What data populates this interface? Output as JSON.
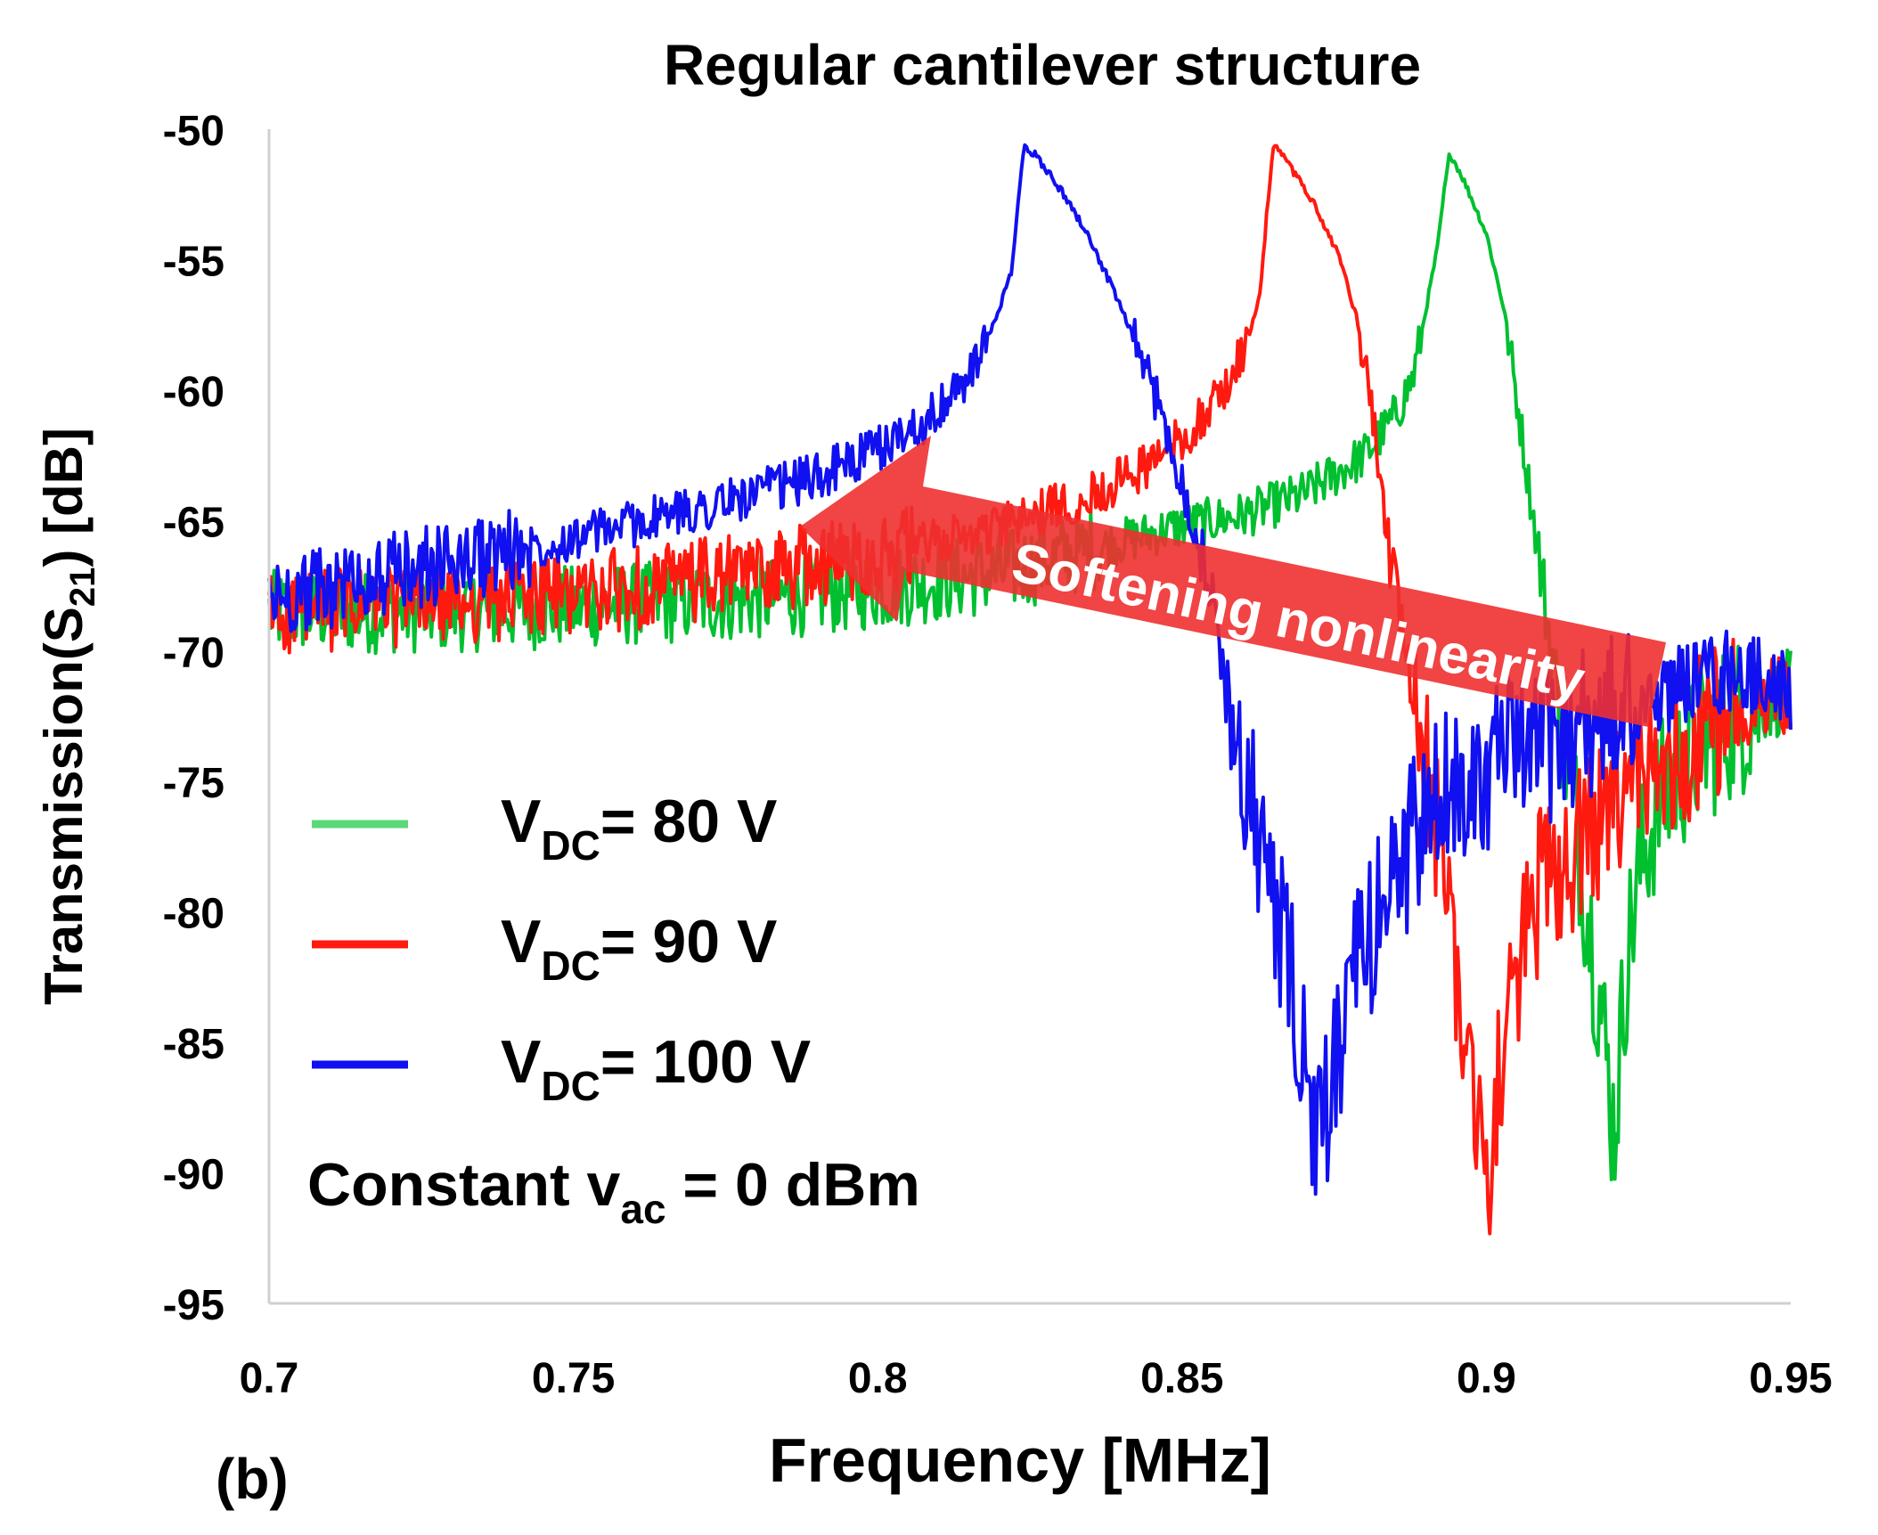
{
  "chart_data": {
    "type": "line",
    "title": "Regular cantilever structure",
    "xlabel": "Frequency [MHz]",
    "ylabel": {
      "pre": "Transmission(S",
      "sub": "21",
      "post": ") [dB]"
    },
    "xlim": [
      0.7,
      0.95
    ],
    "ylim": [
      -95,
      -50
    ],
    "x_ticks": [
      "0.7",
      "0.75",
      "0.8",
      "0.85",
      "0.9",
      "0.95"
    ],
    "y_ticks": [
      "-50",
      "-55",
      "-60",
      "-65",
      "-70",
      "-75",
      "-80",
      "-85",
      "-90",
      "-95"
    ],
    "grid": false,
    "panel_label": "(b)",
    "legend_position": "lower-left",
    "series": [
      {
        "name": {
          "pre": "V",
          "sub": "DC",
          "post": "= 80 V"
        },
        "color": "#00c030",
        "legend_color": "#5ad87a",
        "x": [
          0.7,
          0.72,
          0.74,
          0.76,
          0.78,
          0.8,
          0.82,
          0.83,
          0.84,
          0.85,
          0.86,
          0.87,
          0.88,
          0.885,
          0.888,
          0.89,
          0.892,
          0.893,
          0.894,
          0.896,
          0.9,
          0.903,
          0.906,
          0.909,
          0.911,
          0.913,
          0.915,
          0.917,
          0.919,
          0.921,
          0.923,
          0.925,
          0.928,
          0.932,
          0.936,
          0.94,
          0.945,
          0.95
        ],
        "y": [
          -68.5,
          -68.5,
          -68.4,
          -68.2,
          -68.0,
          -67.6,
          -67.0,
          -66.4,
          -65.8,
          -65.2,
          -64.8,
          -64.0,
          -62.5,
          -61.0,
          -59.5,
          -57.0,
          -54.5,
          -52.5,
          -50.9,
          -51.8,
          -54.0,
          -57.0,
          -62.0,
          -67.0,
          -70.5,
          -73.5,
          -77.0,
          -80.5,
          -84.0,
          -88.5,
          -82.0,
          -78.5,
          -76.0,
          -74.5,
          -73.5,
          -72.7,
          -72.0,
          -71.5
        ]
      },
      {
        "name": {
          "pre": "V",
          "sub": "DC",
          "post": "= 90 V"
        },
        "color": "#ff1a10",
        "legend_color": "#ff1a10",
        "x": [
          0.7,
          0.72,
          0.74,
          0.76,
          0.78,
          0.8,
          0.82,
          0.835,
          0.845,
          0.852,
          0.857,
          0.861,
          0.863,
          0.864,
          0.865,
          0.868,
          0.872,
          0.876,
          0.879,
          0.882,
          0.885,
          0.888,
          0.89,
          0.892,
          0.894,
          0.896,
          0.898,
          0.9,
          0.903,
          0.906,
          0.91,
          0.915,
          0.92,
          0.925,
          0.93,
          0.935,
          0.94,
          0.945,
          0.95
        ],
        "y": [
          -68.5,
          -68.3,
          -68.0,
          -67.6,
          -67.0,
          -66.3,
          -65.3,
          -64.0,
          -62.8,
          -61.4,
          -60.0,
          -58.0,
          -56.0,
          -53.0,
          -50.6,
          -51.5,
          -53.0,
          -55.0,
          -57.5,
          -62.0,
          -68.0,
          -72.0,
          -74.5,
          -77.0,
          -80.0,
          -83.5,
          -87.0,
          -90.5,
          -85.0,
          -81.0,
          -78.5,
          -77.5,
          -76.5,
          -75.0,
          -74.0,
          -73.0,
          -72.3,
          -71.8,
          -71.5
        ]
      },
      {
        "name": {
          "pre": "V",
          "sub": "DC",
          "post": "= 100 V"
        },
        "color": "#1010f0",
        "legend_color": "#1010f0",
        "x": [
          0.7,
          0.715,
          0.73,
          0.745,
          0.76,
          0.775,
          0.79,
          0.8,
          0.81,
          0.815,
          0.819,
          0.822,
          0.823,
          0.824,
          0.826,
          0.83,
          0.834,
          0.838,
          0.842,
          0.846,
          0.85,
          0.854,
          0.857,
          0.86,
          0.863,
          0.866,
          0.869,
          0.872,
          0.875,
          0.878,
          0.882,
          0.886,
          0.89,
          0.895,
          0.9,
          0.905,
          0.91,
          0.915,
          0.92,
          0.925,
          0.93,
          0.935,
          0.94,
          0.945,
          0.95
        ],
        "y": [
          -68.0,
          -67.3,
          -66.6,
          -65.9,
          -65.1,
          -64.3,
          -63.3,
          -62.3,
          -60.8,
          -59.5,
          -57.5,
          -55.5,
          -53.0,
          -50.7,
          -51.0,
          -52.3,
          -53.8,
          -55.8,
          -58.0,
          -60.5,
          -63.5,
          -67.0,
          -71.0,
          -74.5,
          -77.5,
          -80.5,
          -84.0,
          -89.5,
          -86.0,
          -83.0,
          -80.0,
          -78.0,
          -76.5,
          -75.0,
          -74.5,
          -74.0,
          -73.5,
          -73.0,
          -72.5,
          -72.0,
          -71.5,
          -71.0,
          -70.8,
          -71.0,
          -71.5
        ]
      }
    ],
    "legend_note": {
      "pre": "Constant v",
      "sub": "ac",
      "post": " = 0 dBm"
    },
    "annotation": {
      "text": "Softening nonlinearity",
      "color": "#f03030"
    }
  }
}
